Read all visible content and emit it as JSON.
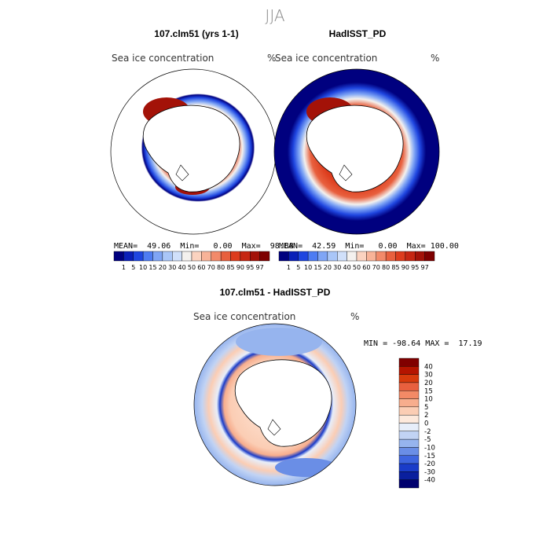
{
  "season": "JJA",
  "panels": [
    {
      "title": "107.clm51 (yrs 1-1)",
      "variable": "Sea ice concentration",
      "unit": "%",
      "mean": "49.06",
      "min": "0.00",
      "max": "98.88"
    },
    {
      "title": "HadISST_PD",
      "variable": "Sea ice concentration",
      "unit": "%",
      "mean": "42.59",
      "min": "0.00",
      "max": "100.00"
    }
  ],
  "stat_labels": {
    "mean": "MEAN=",
    "min": "Min=",
    "max": "Max="
  },
  "colorbar_top": {
    "labels": [
      "1",
      "5",
      "10",
      "15",
      "20",
      "30",
      "40",
      "50",
      "60",
      "70",
      "80",
      "85",
      "90",
      "95",
      "97"
    ],
    "colors": [
      "#00007f",
      "#0a1fb8",
      "#1f46e0",
      "#4e7cf2",
      "#7fa5f5",
      "#a9c6f8",
      "#d0e0fa",
      "#f4f1ee",
      "#fbd3c0",
      "#f8b398",
      "#f28a6a",
      "#e8603e",
      "#dd3c1d",
      "#c62612",
      "#a31208",
      "#7e0000"
    ]
  },
  "diff": {
    "title": "107.clm51 - HadISST_PD",
    "variable": "Sea ice concentration",
    "unit": "%",
    "min_label": "MIN =",
    "min": "-98.64",
    "max_label": "MAX =",
    "max": "17.19",
    "colorbar_labels": [
      "40",
      "30",
      "20",
      "15",
      "10",
      "5",
      "2",
      "0",
      "-2",
      "-5",
      "-10",
      "-15",
      "-20",
      "-30",
      "-40"
    ],
    "colorbar_colors": [
      "#800000",
      "#b51400",
      "#d73a0c",
      "#e8603e",
      "#f38a66",
      "#f7ad8d",
      "#fbcdb4",
      "#fde9dc",
      "#e7eefa",
      "#c1d3f4",
      "#96b4ee",
      "#6a8ee6",
      "#3e65df",
      "#1a3cc9",
      "#0a1f9e",
      "#00006e"
    ]
  }
}
